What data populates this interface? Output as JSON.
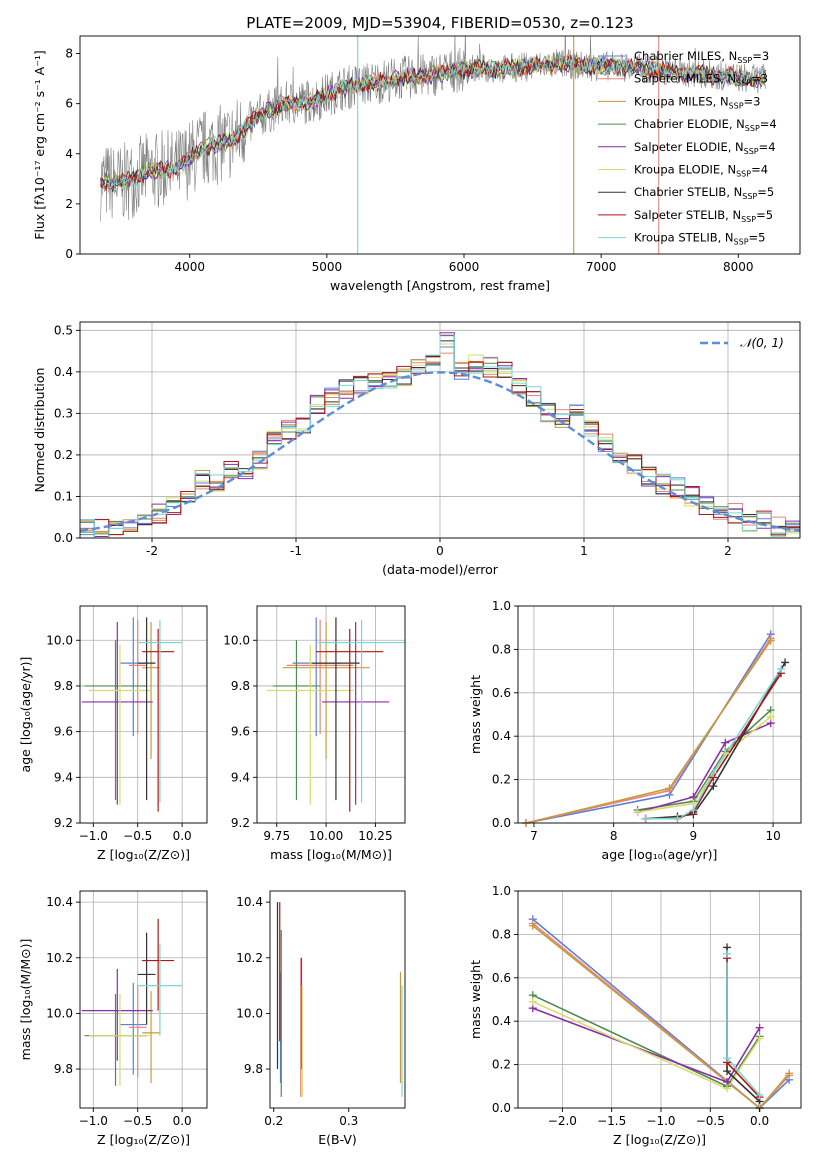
{
  "figure_title": "PLATE=2009, MJD=53904, FIBERID=0530, z=0.123",
  "colors": {
    "Chabrier MILES": "#5b7fd6",
    "Salpeter MILES": "#e8867a",
    "Kroupa MILES": "#c89a3a",
    "Chabrier ELODIE": "#4f8a4f",
    "Salpeter ELODIE": "#8a2ea8",
    "Kroupa ELODIE": "#d7dc6a",
    "Chabrier STELIB": "#333333",
    "Salpeter STELIB": "#b01616",
    "Kroupa STELIB": "#7ad6d6",
    "data": "#808080",
    "gauss": "#5b8ed6",
    "grid": "#b0b0b0"
  },
  "chart_data": [
    {
      "type": "line",
      "title": "PLATE=2009, MJD=53904, FIBERID=0530, z=0.123",
      "xlabel": "wavelength [Angstrom, rest frame]",
      "ylabel": "Flux [fλ10⁻¹⁷ erg cm⁻² s⁻¹ A⁻¹]",
      "xlim": [
        3200,
        8450
      ],
      "ylim": [
        0,
        8.7
      ],
      "xticks": [
        4000,
        5000,
        6000,
        7000,
        8000
      ],
      "yticks": [
        0,
        2,
        4,
        6,
        8
      ],
      "grid": false,
      "legend_position": "upper right",
      "legend": [
        {
          "label": "Chabrier MILES, N",
          "sub": "SSP",
          "tail": "=3"
        },
        {
          "label": "Salpeter MILES, N",
          "sub": "SSP",
          "tail": "=3"
        },
        {
          "label": "Kroupa MILES, N",
          "sub": "SSP",
          "tail": "=3"
        },
        {
          "label": "Chabrier ELODIE, N",
          "sub": "SSP",
          "tail": "=4"
        },
        {
          "label": "Salpeter ELODIE, N",
          "sub": "SSP",
          "tail": "=4"
        },
        {
          "label": "Kroupa ELODIE, N",
          "sub": "SSP",
          "tail": "=4"
        },
        {
          "label": "Chabrier STELIB, N",
          "sub": "SSP",
          "tail": "=5"
        },
        {
          "label": "Salpeter STELIB, N",
          "sub": "SSP",
          "tail": "=5"
        },
        {
          "label": "Kroupa STELIB, N",
          "sub": "SSP",
          "tail": "=5"
        }
      ],
      "continuum_wavelength": [
        3350,
        3500,
        3700,
        3900,
        4100,
        4300,
        4500,
        4700,
        4900,
        5100,
        5300,
        5500,
        5700,
        5900,
        6100,
        6300,
        6500,
        6700,
        6900,
        7100,
        7300,
        7500,
        7700,
        7900,
        8100
      ],
      "continuum_flux": [
        2.9,
        2.8,
        3.3,
        3.4,
        4.2,
        4.5,
        5.5,
        6.0,
        6.1,
        6.6,
        6.8,
        7.0,
        7.1,
        7.3,
        7.4,
        7.4,
        7.5,
        7.6,
        7.5,
        7.5,
        7.4,
        7.3,
        7.2,
        7.1,
        7.0
      ]
    },
    {
      "type": "bar",
      "xlabel": "(data-model)/error",
      "ylabel": "Normed distribution",
      "xlim": [
        -2.5,
        2.5
      ],
      "ylim": [
        0,
        0.52
      ],
      "xticks": [
        -2,
        -1,
        0,
        1,
        2
      ],
      "yticks": [
        0.0,
        0.1,
        0.2,
        0.3,
        0.4,
        0.5
      ],
      "grid": true,
      "legend_position": "upper right",
      "legend": "𝒩(0, 1)",
      "bin_width": 0.1,
      "histogram_centers": [
        -2.45,
        -2.35,
        -2.25,
        -2.15,
        -2.05,
        -1.95,
        -1.85,
        -1.75,
        -1.65,
        -1.55,
        -1.45,
        -1.35,
        -1.25,
        -1.15,
        -1.05,
        -0.95,
        -0.85,
        -0.75,
        -0.65,
        -0.55,
        -0.45,
        -0.35,
        -0.25,
        -0.15,
        -0.05,
        0.05,
        0.15,
        0.25,
        0.35,
        0.45,
        0.55,
        0.65,
        0.75,
        0.85,
        0.95,
        1.05,
        1.15,
        1.25,
        1.35,
        1.45,
        1.55,
        1.65,
        1.75,
        1.85,
        1.95,
        2.05,
        2.15,
        2.25,
        2.35,
        2.45
      ],
      "histogram_values": [
        0.02,
        0.02,
        0.03,
        0.04,
        0.05,
        0.06,
        0.08,
        0.11,
        0.14,
        0.13,
        0.16,
        0.15,
        0.19,
        0.24,
        0.26,
        0.27,
        0.32,
        0.34,
        0.36,
        0.37,
        0.38,
        0.38,
        0.39,
        0.41,
        0.43,
        0.47,
        0.4,
        0.42,
        0.41,
        0.4,
        0.37,
        0.34,
        0.3,
        0.29,
        0.3,
        0.26,
        0.23,
        0.19,
        0.18,
        0.15,
        0.13,
        0.12,
        0.1,
        0.08,
        0.07,
        0.06,
        0.04,
        0.04,
        0.03,
        0.02
      ]
    },
    {
      "type": "scatter",
      "xlabel": "Z [log₁₀(Z/Z⊙)]",
      "ylabel": "age  [log₁₀(age/yr)]",
      "xlim": [
        -1.15,
        0.28
      ],
      "ylim": [
        9.2,
        10.15
      ],
      "xticks": [
        -1.0,
        -0.5,
        0.0
      ],
      "yticks": [
        9.2,
        9.4,
        9.6,
        9.8,
        10.0
      ],
      "grid": true,
      "points": [
        {
          "series": "Chabrier MILES",
          "x": -0.55,
          "y": 9.9,
          "xerr": 0.15,
          "yerr": [
            0.32,
            0.2
          ]
        },
        {
          "series": "Salpeter MILES",
          "x": -0.5,
          "y": 9.89,
          "xerr": 0.1,
          "yerr": [
            0.3,
            0.2
          ]
        },
        {
          "series": "Kroupa MILES",
          "x": -0.35,
          "y": 9.88,
          "xerr": 0.1,
          "yerr": [
            0.4,
            0.2
          ]
        },
        {
          "series": "Chabrier ELODIE",
          "x": -0.75,
          "y": 9.8,
          "xerr": 0.35,
          "yerr": [
            0.5,
            0.2
          ]
        },
        {
          "series": "Salpeter ELODIE",
          "x": -0.73,
          "y": 9.73,
          "xerr": 0.4,
          "yerr": [
            0.45,
            0.35
          ]
        },
        {
          "series": "Kroupa ELODIE",
          "x": -0.7,
          "y": 9.78,
          "xerr": 0.35,
          "yerr": [
            0.5,
            0.2
          ]
        },
        {
          "series": "Chabrier STELIB",
          "x": -0.4,
          "y": 9.9,
          "xerr": 0.1,
          "yerr": [
            0.6,
            0.2
          ]
        },
        {
          "series": "Salpeter STELIB",
          "x": -0.27,
          "y": 9.95,
          "xerr": 0.18,
          "yerr": [
            0.7,
            0.1
          ]
        },
        {
          "series": "Kroupa STELIB",
          "x": -0.25,
          "y": 9.99,
          "xerr": 0.25,
          "yerr": [
            0.7,
            0.1
          ]
        }
      ]
    },
    {
      "type": "scatter",
      "xlabel": "mass [log₁₀(M/M⊙)]",
      "ylabel": "",
      "xlim": [
        9.65,
        10.4
      ],
      "ylim": [
        9.2,
        10.15
      ],
      "xticks": [
        9.75,
        10.0,
        10.25
      ],
      "yticks": [
        9.2,
        9.4,
        9.6,
        9.8,
        10.0
      ],
      "grid": true
    },
    {
      "type": "line",
      "xlabel": "age  [log₁₀(age/yr)]",
      "ylabel": "mass weight",
      "xlim": [
        6.8,
        10.35
      ],
      "ylim": [
        0,
        1.0
      ],
      "xticks": [
        7,
        8,
        9,
        10
      ],
      "yticks": [
        0.0,
        0.2,
        0.4,
        0.6,
        0.8,
        1.0
      ],
      "grid": true,
      "series": [
        {
          "name": "Chabrier MILES",
          "x": [
            6.9,
            8.7,
            9.97
          ],
          "y": [
            0.0,
            0.13,
            0.87
          ]
        },
        {
          "name": "Salpeter MILES",
          "x": [
            6.9,
            8.7,
            9.97
          ],
          "y": [
            0.0,
            0.15,
            0.85
          ]
        },
        {
          "name": "Kroupa MILES",
          "x": [
            6.9,
            8.7,
            9.97
          ],
          "y": [
            0.0,
            0.16,
            0.84
          ]
        },
        {
          "name": "Chabrier ELODIE",
          "x": [
            8.3,
            9.0,
            9.4,
            9.97
          ],
          "y": [
            0.06,
            0.1,
            0.33,
            0.52
          ]
        },
        {
          "name": "Salpeter ELODIE",
          "x": [
            8.3,
            9.0,
            9.4,
            9.97
          ],
          "y": [
            0.05,
            0.12,
            0.37,
            0.46
          ]
        },
        {
          "name": "Kroupa ELODIE",
          "x": [
            8.3,
            9.0,
            9.4,
            9.97
          ],
          "y": [
            0.05,
            0.09,
            0.32,
            0.49
          ]
        },
        {
          "name": "Chabrier STELIB",
          "x": [
            8.4,
            8.8,
            9.0,
            9.25,
            10.15
          ],
          "y": [
            0.02,
            0.03,
            0.04,
            0.17,
            0.74
          ]
        },
        {
          "name": "Salpeter STELIB",
          "x": [
            8.4,
            8.8,
            9.0,
            9.25,
            10.1
          ],
          "y": [
            0.02,
            0.02,
            0.05,
            0.21,
            0.69
          ]
        },
        {
          "name": "Kroupa STELIB",
          "x": [
            8.4,
            8.8,
            9.0,
            9.25,
            10.1
          ],
          "y": [
            0.02,
            0.02,
            0.06,
            0.23,
            0.71
          ]
        }
      ]
    },
    {
      "type": "scatter",
      "xlabel": "Z [log₁₀(Z/Z⊙)]",
      "ylabel": "mass [log₁₀(M/M⊙)]",
      "xlim": [
        -1.15,
        0.28
      ],
      "ylim": [
        9.66,
        10.44
      ],
      "xticks": [
        -1.0,
        -0.5,
        0.0
      ],
      "yticks": [
        9.8,
        10.0,
        10.2,
        10.4
      ],
      "grid": true
    },
    {
      "type": "scatter",
      "xlabel": "E(B-V)",
      "ylabel": "",
      "xlim": [
        0.195,
        0.375
      ],
      "ylim": [
        9.66,
        10.44
      ],
      "xticks": [
        0.2,
        0.3
      ],
      "yticks": [
        9.8,
        10.0,
        10.2,
        10.4
      ],
      "grid": false,
      "points": [
        {
          "series": "Chabrier MILES",
          "x": 0.209,
          "y": 9.95,
          "yerr": 0.2
        },
        {
          "series": "Salpeter MILES",
          "x": 0.236,
          "y": 9.95,
          "yerr": 0.25
        },
        {
          "series": "Kroupa MILES",
          "x": 0.369,
          "y": 9.95,
          "yerr": 0.2
        },
        {
          "series": "Chabrier ELODIE",
          "x": 0.21,
          "y": 10.0,
          "yerr": 0.3
        },
        {
          "series": "Salpeter ELODIE",
          "x": 0.237,
          "y": 10.0,
          "yerr": 0.2
        },
        {
          "series": "Kroupa ELODIE",
          "x": 0.238,
          "y": 9.9,
          "yerr": 0.2
        },
        {
          "series": "Chabrier STELIB",
          "x": 0.205,
          "y": 10.1,
          "yerr": 0.3
        },
        {
          "series": "Salpeter STELIB",
          "x": 0.208,
          "y": 10.15,
          "yerr": 0.25
        },
        {
          "series": "Kroupa STELIB",
          "x": 0.371,
          "y": 9.9,
          "yerr": 0.2
        }
      ]
    },
    {
      "type": "line",
      "xlabel": "Z [log₁₀(Z/Z⊙)]",
      "ylabel": "mass weight",
      "xlim": [
        -2.45,
        0.42
      ],
      "ylim": [
        0,
        1.0
      ],
      "xticks": [
        -2.0,
        -1.5,
        -1.0,
        -0.5,
        0.0
      ],
      "yticks": [
        0.0,
        0.2,
        0.4,
        0.6,
        0.8,
        1.0
      ],
      "grid": true,
      "series": [
        {
          "name": "Chabrier MILES",
          "x": [
            -2.3,
            0.0,
            0.3
          ],
          "y": [
            0.87,
            0.0,
            0.13
          ]
        },
        {
          "name": "Salpeter MILES",
          "x": [
            -2.3,
            0.0,
            0.3
          ],
          "y": [
            0.85,
            0.0,
            0.15
          ]
        },
        {
          "name": "Kroupa MILES",
          "x": [
            -2.3,
            0.0,
            0.3
          ],
          "y": [
            0.84,
            0.0,
            0.16
          ]
        },
        {
          "name": "Chabrier ELODIE",
          "x": [
            -2.3,
            -0.33,
            0.0
          ],
          "y": [
            0.52,
            0.1,
            0.33
          ]
        },
        {
          "name": "Salpeter ELODIE",
          "x": [
            -2.3,
            -0.33,
            0.0
          ],
          "y": [
            0.46,
            0.12,
            0.37
          ]
        },
        {
          "name": "Kroupa ELODIE",
          "x": [
            -2.3,
            -0.33,
            0.0
          ],
          "y": [
            0.49,
            0.09,
            0.32
          ]
        },
        {
          "name": "Chabrier STELIB",
          "x": [
            -0.33,
            -0.33,
            0.0,
            0.0
          ],
          "y": [
            0.74,
            0.17,
            0.03,
            0.0
          ]
        },
        {
          "name": "Salpeter STELIB",
          "x": [
            -0.33,
            -0.33,
            0.0,
            0.0
          ],
          "y": [
            0.69,
            0.21,
            0.05,
            0.0
          ]
        },
        {
          "name": "Kroupa STELIB",
          "x": [
            -0.33,
            -0.33,
            0.0,
            0.0
          ],
          "y": [
            0.71,
            0.23,
            0.06,
            0.0
          ]
        }
      ]
    }
  ]
}
